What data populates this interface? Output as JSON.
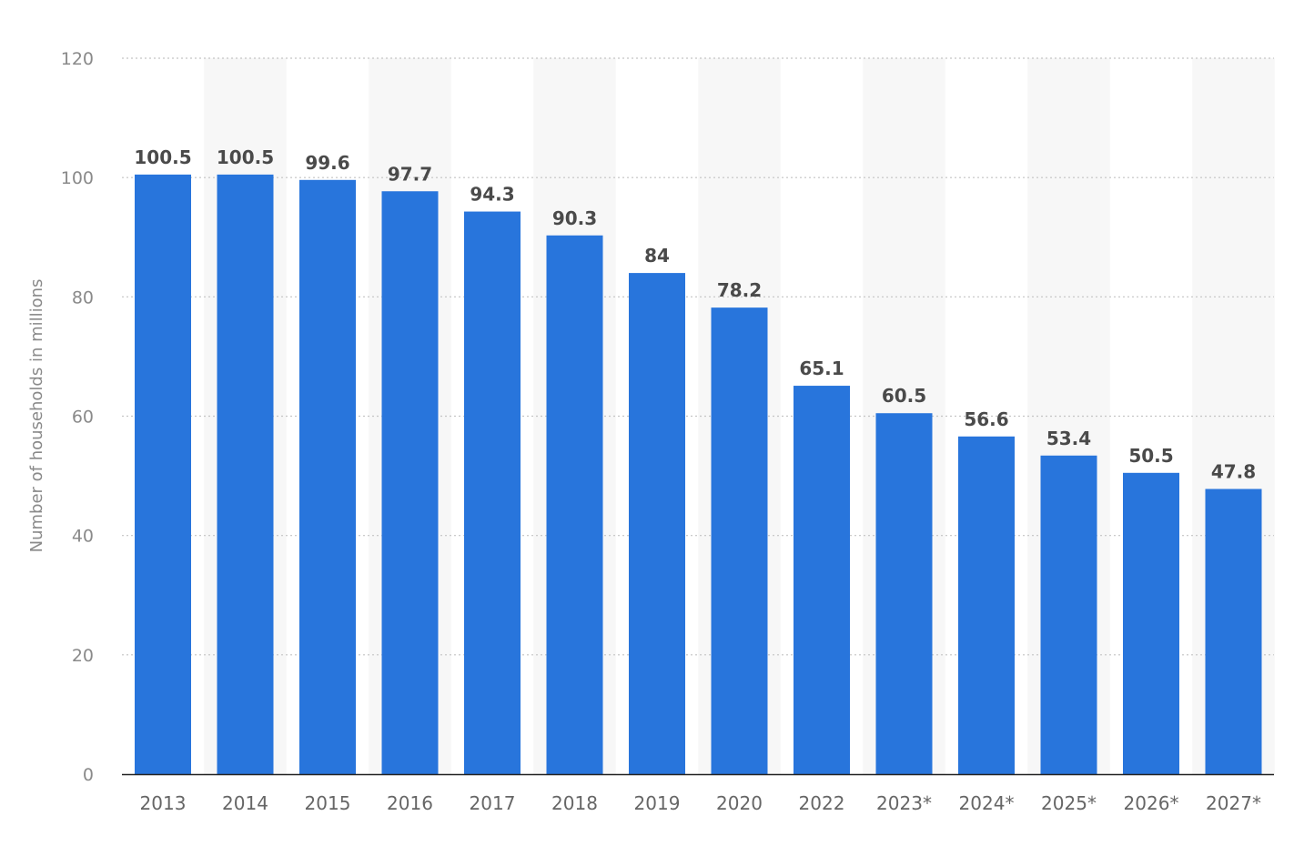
{
  "chart_data": {
    "type": "bar",
    "title": "",
    "xlabel": "",
    "ylabel": "Number of households in millions",
    "ylim": [
      0,
      120
    ],
    "yticks": [
      0,
      20,
      40,
      60,
      80,
      100,
      120
    ],
    "grid": true,
    "legend": "none",
    "bar_color": "#2875dc",
    "band_color": "#f7f7f7",
    "categories": [
      "2013",
      "2014",
      "2015",
      "2016",
      "2017",
      "2018",
      "2019",
      "2020",
      "2022",
      "2023*",
      "2024*",
      "2025*",
      "2026*",
      "2027*"
    ],
    "values": [
      100.5,
      100.5,
      99.6,
      97.7,
      94.3,
      90.3,
      84,
      78.2,
      65.1,
      60.5,
      56.6,
      53.4,
      50.5,
      47.8
    ],
    "value_labels": [
      "100.5",
      "100.5",
      "99.6",
      "97.7",
      "94.3",
      "90.3",
      "84",
      "78.2",
      "65.1",
      "60.5",
      "56.6",
      "53.4",
      "50.5",
      "47.8"
    ]
  }
}
